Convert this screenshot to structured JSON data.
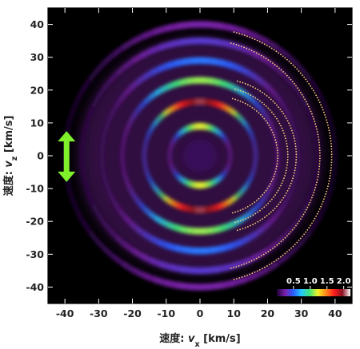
{
  "chart_data": {
    "type": "heatmap",
    "title": "",
    "xlabel_prefix": "速度: ",
    "xlabel_var": "v",
    "xlabel_sub": "x",
    "xlabel_unit": "  [km/s]",
    "ylabel_prefix": "速度: ",
    "ylabel_var": "v",
    "ylabel_sub": "z",
    "ylabel_unit": "  [km/s]",
    "xlim": [
      -45,
      45
    ],
    "ylim": [
      -45,
      45
    ],
    "xticks": [
      -40,
      -30,
      -20,
      -10,
      0,
      10,
      20,
      30,
      40
    ],
    "yticks": [
      40,
      30,
      20,
      10,
      0,
      -10,
      -20,
      -30,
      -40
    ],
    "xtick_labels": [
      "-40",
      "-30",
      "-20",
      "-10",
      "0",
      "10",
      "20",
      "30",
      "40"
    ],
    "ytick_labels": [
      "40",
      "30",
      "20",
      "10",
      "0",
      "-10",
      "-20",
      "-30",
      "-40"
    ],
    "rings": [
      {
        "radius": 9,
        "max_intensity": 1.2
      },
      {
        "radius": 16.5,
        "max_intensity": 2.0
      },
      {
        "radius": 23,
        "max_intensity": 1.1
      },
      {
        "radius": 29,
        "max_intensity": 0.55
      },
      {
        "radius": 35,
        "max_intensity": 0.35
      },
      {
        "radius": 40,
        "max_intensity": 0.25
      }
    ],
    "dotted_arcs": [
      {
        "center_x": 0,
        "radius": 39
      },
      {
        "center_x": 0,
        "radius": 35.5
      },
      {
        "center_x": 5,
        "radius": 23.5
      },
      {
        "center_x": 5,
        "radius": 21
      },
      {
        "center_x": 5,
        "radius": 18
      }
    ],
    "polarization_arrow": {
      "x": -39.5,
      "y_from": -8,
      "y_to": 7.5,
      "color": "#7ff02a"
    },
    "colorbar": {
      "ticks": [
        0.5,
        1.0,
        1.5,
        2.0
      ],
      "tick_labels": [
        "0.5",
        "1.0",
        "1.5",
        "2.0"
      ],
      "range": [
        0,
        2.2
      ],
      "colors": [
        "#1a0033",
        "#7a1fa8",
        "#2a5cff",
        "#25c8ff",
        "#3ee37a",
        "#f0f028",
        "#ff8a1a",
        "#ff1d1d",
        "#8a1020",
        "#ffffff"
      ]
    },
    "colors": {
      "background": "#000000",
      "haze": "#8a2bb8"
    }
  }
}
